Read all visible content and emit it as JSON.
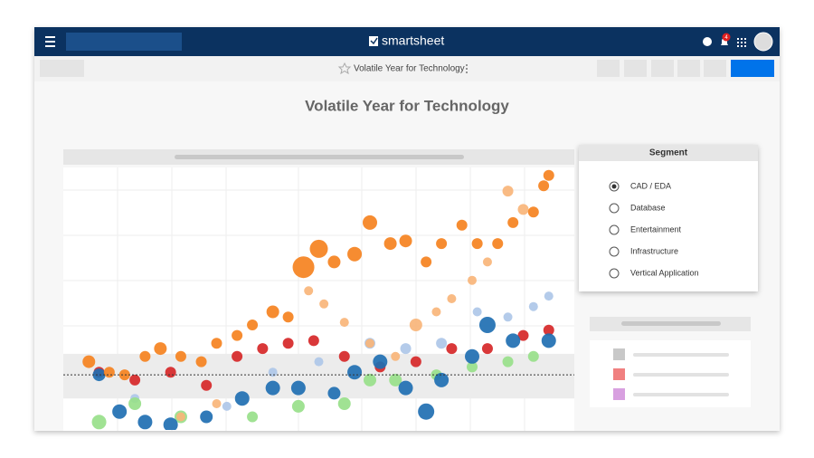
{
  "header": {
    "logo": "smartsheet",
    "notifications": "4"
  },
  "toolbar": {
    "sheet_title": "Volatile Year for Technology"
  },
  "dashboard": {
    "title": "Volatile Year for Technology"
  },
  "segment_panel": {
    "title": "Segment",
    "options": [
      "CAD / EDA",
      "Database",
      "Entertainment",
      "Infrastructure",
      "Vertical Application"
    ],
    "selected": 0
  },
  "chart_data": {
    "type": "scatter",
    "xlim": [
      0,
      100
    ],
    "ylim": [
      0,
      100
    ],
    "band": [
      12,
      29
    ],
    "reference": 21,
    "series": [
      {
        "color": "#aec7e8",
        "x": [
          14,
          23,
          32,
          41,
          50,
          60,
          67,
          74,
          81,
          87,
          92,
          95
        ],
        "values": [
          12,
          5,
          9,
          22,
          26,
          33,
          31,
          33,
          45,
          43,
          47,
          51
        ],
        "sizes": [
          5,
          5,
          5,
          5,
          5,
          6,
          6,
          6,
          5,
          5,
          5,
          5
        ]
      },
      {
        "color": "#98df8a",
        "x": [
          7,
          14,
          23,
          37,
          46,
          55,
          60,
          65,
          73,
          80,
          87,
          92
        ],
        "values": [
          3,
          10,
          5,
          5,
          9,
          10,
          19,
          19,
          21,
          24,
          26,
          28
        ],
        "sizes": [
          8,
          7,
          7,
          6,
          7,
          7,
          7,
          7,
          6,
          6,
          6,
          6
        ]
      },
      {
        "color": "#f9b57a",
        "x": [
          48,
          51,
          55,
          60,
          65,
          69,
          73,
          76,
          80,
          83,
          87,
          90,
          23,
          30
        ],
        "values": [
          53,
          48,
          41,
          33,
          28,
          40,
          45,
          50,
          57,
          64,
          91,
          84,
          5,
          10
        ],
        "sizes": [
          5,
          5,
          5,
          5,
          5,
          7,
          5,
          5,
          5,
          5,
          6,
          6,
          5,
          5
        ]
      },
      {
        "color": "#d62728",
        "x": [
          7,
          14,
          21,
          28,
          34,
          39,
          44,
          49,
          55,
          62,
          69,
          76,
          83,
          90,
          95
        ],
        "values": [
          22,
          19,
          22,
          17,
          28,
          31,
          33,
          34,
          28,
          24,
          26,
          31,
          31,
          36,
          38
        ],
        "sizes": [
          6,
          6,
          6,
          6,
          6,
          6,
          6,
          6,
          6,
          6,
          6,
          6,
          6,
          6,
          6
        ]
      },
      {
        "color": "#1f6fb2",
        "x": [
          7,
          11,
          16,
          21,
          28,
          35,
          41,
          46,
          53,
          57,
          62,
          67,
          71,
          74,
          80,
          83,
          88,
          95
        ],
        "values": [
          21,
          7,
          3,
          2,
          5,
          12,
          16,
          16,
          14,
          22,
          26,
          16,
          7,
          19,
          28,
          40,
          34,
          34
        ],
        "sizes": [
          7,
          8,
          8,
          8,
          7,
          8,
          8,
          8,
          7,
          8,
          8,
          8,
          9,
          8,
          8,
          9,
          8,
          8
        ]
      },
      {
        "color": "#f5821f",
        "x": [
          5,
          9,
          12,
          16,
          19,
          23,
          27,
          30,
          34,
          37,
          41,
          44,
          47,
          50,
          53,
          57,
          60,
          64,
          67,
          71,
          74,
          78,
          81,
          85,
          88,
          92,
          94,
          95
        ],
        "values": [
          26,
          22,
          21,
          28,
          31,
          28,
          26,
          33,
          36,
          40,
          45,
          43,
          62,
          69,
          64,
          67,
          79,
          71,
          72,
          64,
          71,
          78,
          71,
          71,
          79,
          83,
          93,
          97
        ],
        "sizes": [
          7,
          6,
          6,
          6,
          7,
          6,
          6,
          6,
          6,
          6,
          7,
          6,
          12,
          10,
          7,
          8,
          8,
          7,
          7,
          6,
          6,
          6,
          6,
          6,
          6,
          6,
          6,
          6
        ]
      }
    ]
  }
}
